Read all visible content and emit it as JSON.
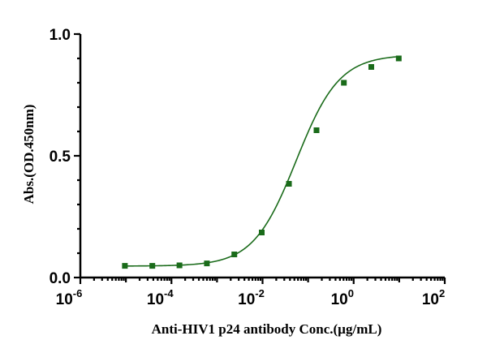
{
  "chart_data": {
    "type": "scatter",
    "xscale": "log",
    "xlabel": "Anti-HIV1 p24 antibody Conc.(µg/mL)",
    "ylabel": "Abs.(OD.450nm)",
    "xlim": [
      1e-06,
      100
    ],
    "ylim": [
      0,
      1.0
    ],
    "x_ticks": [
      {
        "base": "10",
        "exp": "-6",
        "value": 1e-06
      },
      {
        "base": "10",
        "exp": "-4",
        "value": 0.0001
      },
      {
        "base": "10",
        "exp": "-2",
        "value": 0.01
      },
      {
        "base": "10",
        "exp": "0",
        "value": 1
      },
      {
        "base": "10",
        "exp": "2",
        "value": 100
      }
    ],
    "y_ticks": [
      {
        "label": "0.0",
        "value": 0.0
      },
      {
        "label": "0.5",
        "value": 0.5
      },
      {
        "label": "1.0",
        "value": 1.0
      }
    ],
    "series": [
      {
        "color": "#1a6b1a",
        "marker": "square",
        "fit": "4PL",
        "x": [
          9.5e-06,
          3.8e-05,
          0.00015,
          0.0006,
          0.0024,
          0.0096,
          0.038,
          0.153,
          0.61,
          2.44,
          9.77
        ],
        "y": [
          0.048,
          0.048,
          0.05,
          0.058,
          0.095,
          0.185,
          0.385,
          0.605,
          0.8,
          0.865,
          0.9
        ]
      }
    ],
    "grid": false,
    "legend": false
  }
}
